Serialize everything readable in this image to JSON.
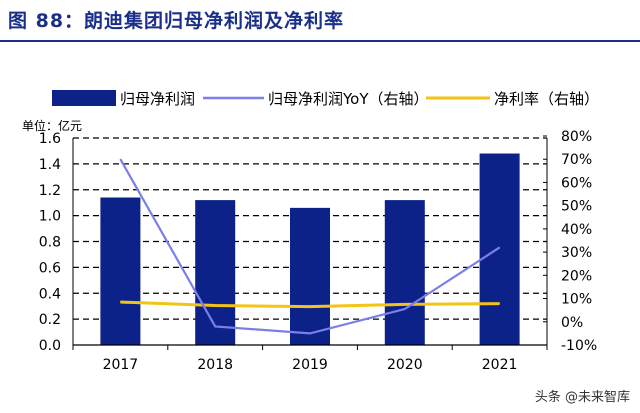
{
  "header": {
    "title": "图 88：朗迪集团归母净利润及净利率"
  },
  "watermark": "头条 @未来智库",
  "chart_data": {
    "type": "bar",
    "title": "",
    "unit_label": "单位：亿元",
    "categories": [
      "2017",
      "2018",
      "2019",
      "2020",
      "2021"
    ],
    "series": [
      {
        "name": "归母净利润",
        "type": "bar",
        "axis": "left",
        "color": "#0d2289",
        "values": [
          1.14,
          1.12,
          1.06,
          1.12,
          1.48
        ]
      },
      {
        "name": "归母净利润YoY（右轴）",
        "type": "line",
        "axis": "right",
        "color": "#7b7fe8",
        "values": [
          70,
          -2,
          -5,
          5.5,
          32
        ]
      },
      {
        "name": "净利率（右轴）",
        "type": "line",
        "axis": "right",
        "color": "#f3c318",
        "values": [
          8.5,
          7,
          6.5,
          7.5,
          7.8
        ]
      }
    ],
    "ylim": [
      0,
      1.6
    ],
    "yticks": [
      "0.0",
      "0.2",
      "0.4",
      "0.6",
      "0.8",
      "1.0",
      "1.2",
      "1.4",
      "1.6"
    ],
    "y2lim": [
      -10,
      80
    ],
    "y2ticks": [
      "-10%",
      "0%",
      "10%",
      "20%",
      "30%",
      "40%",
      "50%",
      "60%",
      "70%",
      "80%"
    ],
    "grid": true,
    "legend": "top"
  }
}
